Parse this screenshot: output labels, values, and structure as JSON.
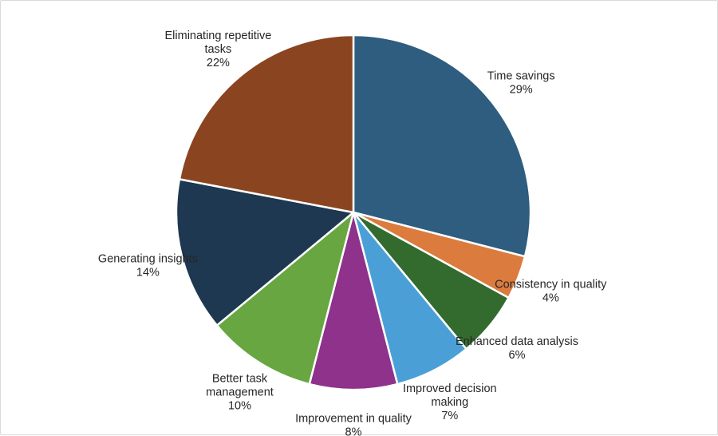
{
  "chart_data": {
    "type": "pie",
    "title": "",
    "start_angle_deg": 0,
    "direction": "clockwise",
    "categories": [
      "Time savings",
      "Consistency in quality",
      "Enhanced data analysis",
      "Improved decision making",
      "Improvement in quality",
      "Better task management",
      "Generating insights",
      "Eliminating repetitive tasks"
    ],
    "values": [
      29,
      4,
      6,
      7,
      8,
      10,
      14,
      22
    ],
    "value_labels": [
      "29%",
      "4%",
      "6%",
      "7%",
      "8%",
      "10%",
      "14%",
      "22%"
    ],
    "colors": [
      "#2e5d7f",
      "#db7b3e",
      "#336b2f",
      "#4aa0d6",
      "#8e328b",
      "#67a640",
      "#1d3850",
      "#8a4520"
    ],
    "slice_edge_color": "#ffffff",
    "label_color": "#262626",
    "labels": [
      {
        "lines": [
          "Time savings"
        ],
        "pct": "29%"
      },
      {
        "lines": [
          "Consistency in quality"
        ],
        "pct": "4%"
      },
      {
        "lines": [
          "Enhanced data analysis"
        ],
        "pct": "6%"
      },
      {
        "lines": [
          "Improved decision",
          "making"
        ],
        "pct": "7%"
      },
      {
        "lines": [
          "Improvement in quality"
        ],
        "pct": "8%"
      },
      {
        "lines": [
          "Better task",
          "management"
        ],
        "pct": "10%"
      },
      {
        "lines": [
          "Generating insights"
        ],
        "pct": "14%"
      },
      {
        "lines": [
          "Eliminating repetitive",
          "tasks"
        ],
        "pct": "22%"
      }
    ],
    "legend": "none"
  }
}
